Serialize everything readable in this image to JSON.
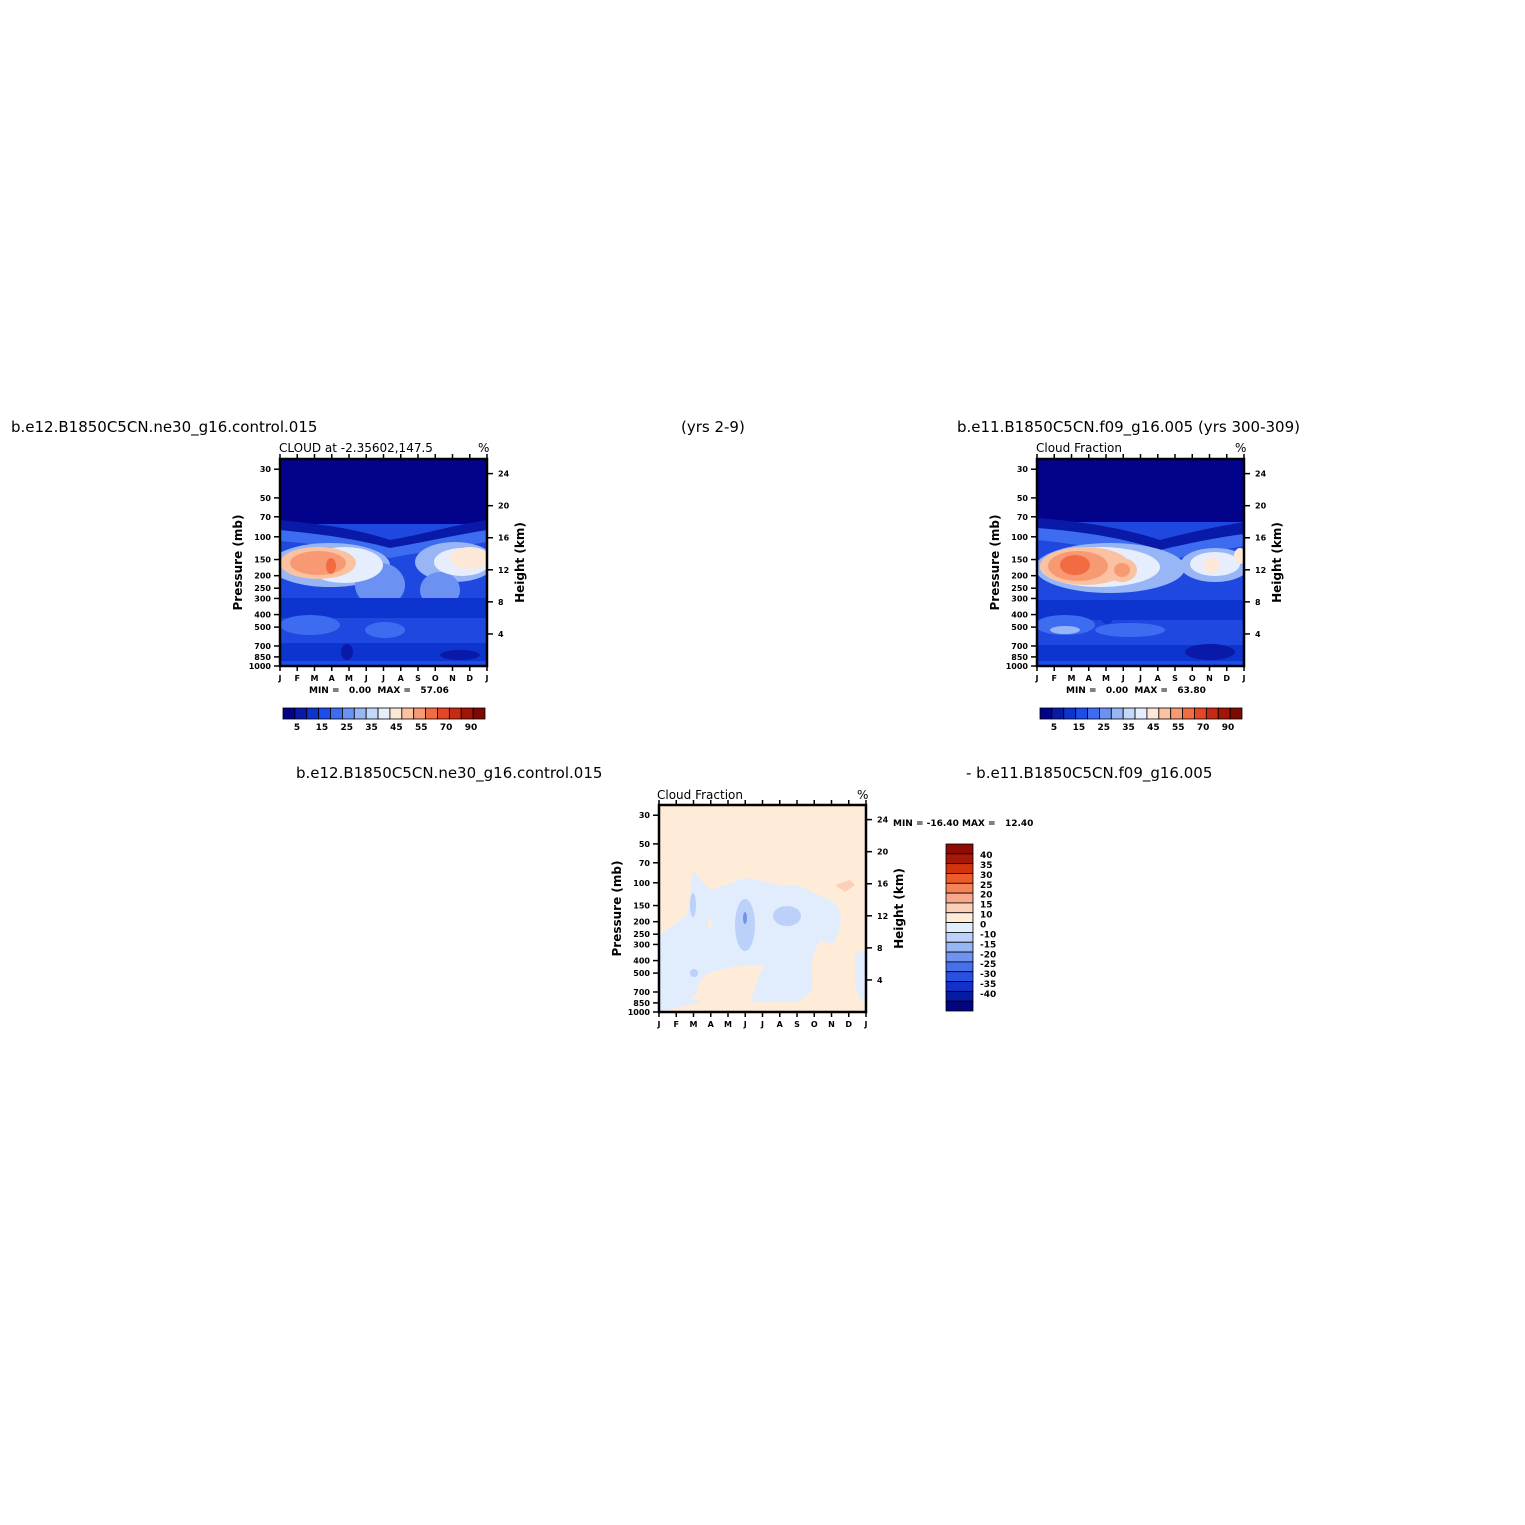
{
  "headers": {
    "top_left": "b.e12.B1850C5CN.ne30_g16.control.015",
    "top_center": "(yrs 2-9)",
    "top_right": "b.e11.B1850C5CN.f09_g16.005 (yrs 300-309)",
    "bottom_left": "b.e12.B1850C5CN.ne30_g16.control.015",
    "bottom_right": "- b.e11.B1850C5CN.f09_g16.005"
  },
  "chart_data": [
    {
      "type": "heatmap",
      "panel": "top-left",
      "title": "CLOUD at -2.35602,147.5",
      "units": "%",
      "ylabel": "Pressure (mb)",
      "ylabel_right": "Height (km)",
      "x_ticks": [
        "J",
        "F",
        "M",
        "A",
        "M",
        "J",
        "J",
        "A",
        "S",
        "O",
        "N",
        "D",
        "J"
      ],
      "pressure_ticks": [
        30,
        50,
        70,
        100,
        150,
        200,
        250,
        300,
        400,
        500,
        700,
        850,
        1000
      ],
      "height_ticks": [
        24,
        20,
        16,
        12,
        8,
        4
      ],
      "ylim": [
        1000,
        25
      ],
      "min_label": "MIN =",
      "min_value": "0.00",
      "max_label": "MAX =",
      "max_value": "57.06",
      "colorbar": {
        "orientation": "horizontal",
        "labels": [
          "5",
          "15",
          "25",
          "35",
          "45",
          "55",
          "70",
          "90"
        ],
        "colors": [
          "#03028a",
          "#0a1aa8",
          "#0d34cf",
          "#1c4cea",
          "#3d6cf0",
          "#6b92f2",
          "#98b6f5",
          "#c3d8fb",
          "#e6eefe",
          "#fde8d8",
          "#fbc2a2",
          "#f79a73",
          "#f26b42",
          "#e54625",
          "#c62a13",
          "#a01506",
          "#7d0a02"
        ]
      },
      "features": [
        {
          "label": "low_cloud_near_surface",
          "x_month": 5.5,
          "p_mb": 850,
          "value": 20
        },
        {
          "label": "upper_tropospheric_max",
          "x_month": 3.0,
          "p_mb": 170,
          "value": 57.06
        },
        {
          "label": "upper_tropospheric_dec",
          "x_month": 11.5,
          "p_mb": 150,
          "value": 45
        }
      ]
    },
    {
      "type": "heatmap",
      "panel": "top-right",
      "title": "Cloud Fraction",
      "units": "%",
      "ylabel": "Pressure (mb)",
      "ylabel_right": "Height (km)",
      "x_ticks": [
        "J",
        "F",
        "M",
        "A",
        "M",
        "J",
        "J",
        "A",
        "S",
        "O",
        "N",
        "D",
        "J"
      ],
      "pressure_ticks": [
        30,
        50,
        70,
        100,
        150,
        200,
        250,
        300,
        400,
        500,
        700,
        850,
        1000
      ],
      "height_ticks": [
        24,
        20,
        16,
        12,
        8,
        4
      ],
      "ylim": [
        1000,
        25
      ],
      "min_label": "MIN =",
      "min_value": "0.00",
      "max_label": "MAX =",
      "max_value": "63.80",
      "colorbar": {
        "orientation": "horizontal",
        "labels": [
          "5",
          "15",
          "25",
          "35",
          "45",
          "55",
          "70",
          "90"
        ],
        "colors": [
          "#03028a",
          "#0a1aa8",
          "#0d34cf",
          "#1c4cea",
          "#3d6cf0",
          "#6b92f2",
          "#98b6f5",
          "#c3d8fb",
          "#e6eefe",
          "#fde8d8",
          "#fbc2a2",
          "#f79a73",
          "#f26b42",
          "#e54625",
          "#c62a13",
          "#a01506",
          "#7d0a02"
        ]
      },
      "features": [
        {
          "label": "upper_tropospheric_max",
          "x_month": 2.0,
          "p_mb": 160,
          "value": 63.8
        },
        {
          "label": "secondary_max",
          "x_month": 5.0,
          "p_mb": 175,
          "value": 48
        }
      ]
    },
    {
      "type": "heatmap",
      "panel": "bottom-center",
      "title": "Cloud Fraction",
      "units": "%",
      "ylabel": "Pressure (mb)",
      "ylabel_right": "Height (km)",
      "x_ticks": [
        "J",
        "F",
        "M",
        "A",
        "M",
        "J",
        "J",
        "A",
        "S",
        "O",
        "N",
        "D",
        "J"
      ],
      "pressure_ticks": [
        30,
        50,
        70,
        100,
        150,
        200,
        250,
        300,
        400,
        500,
        700,
        850,
        1000
      ],
      "height_ticks": [
        24,
        20,
        16,
        12,
        8,
        4
      ],
      "ylim": [
        1000,
        25
      ],
      "min_label": "MIN =",
      "min_value": "-16.40",
      "max_label": "MAX =",
      "max_value": "12.40",
      "colorbar": {
        "orientation": "vertical",
        "labels": [
          "40",
          "35",
          "30",
          "25",
          "20",
          "15",
          "10",
          "0",
          "-10",
          "-15",
          "-20",
          "-25",
          "-30",
          "-35",
          "-40"
        ],
        "colors": [
          "#8e0c05",
          "#a8180a",
          "#d3330f",
          "#ec5b28",
          "#f5835a",
          "#f9a98a",
          "#fcd0b8",
          "#feebd8",
          "#e1ecfd",
          "#bcd1fa",
          "#97b5f4",
          "#6e94ef",
          "#4670ea",
          "#2850e2",
          "#1330c8",
          "#071aa2",
          "#03027f"
        ]
      },
      "features": [
        {
          "label": "negative_region",
          "x_month": 4.5,
          "p_mb": 300,
          "value": -10
        },
        {
          "label": "min_spot",
          "x_month": 5.0,
          "p_mb": 190,
          "value": -16.4
        },
        {
          "label": "max_spot",
          "x_month": 11.3,
          "p_mb": 100,
          "value": 12.4
        }
      ]
    }
  ]
}
